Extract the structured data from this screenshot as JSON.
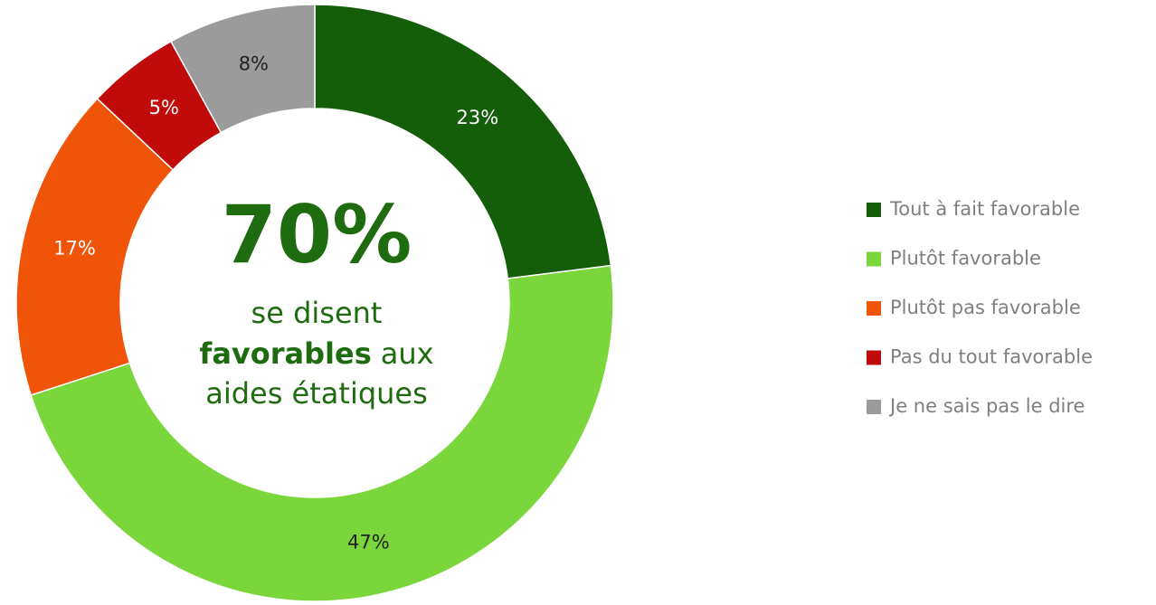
{
  "chart_data": {
    "type": "donut",
    "categories": [
      "Tout à fait favorable",
      "Plutôt favorable",
      "Plutôt pas favorable",
      "Pas du tout favorable",
      "Je ne sais pas le dire"
    ],
    "values": [
      23,
      47,
      17,
      5,
      8
    ],
    "value_labels": [
      "23%",
      "47%",
      "17%",
      "5%",
      "8%"
    ],
    "colors": [
      "#155e09",
      "#7ad63a",
      "#f05408",
      "#c10a0a",
      "#9b9b9b"
    ],
    "legend": "right",
    "annotations": {
      "headline": "70%",
      "line1": "se disent",
      "line2_bold": "favorables",
      "line2_rest": "aux",
      "line3": "aides étatiques"
    }
  }
}
